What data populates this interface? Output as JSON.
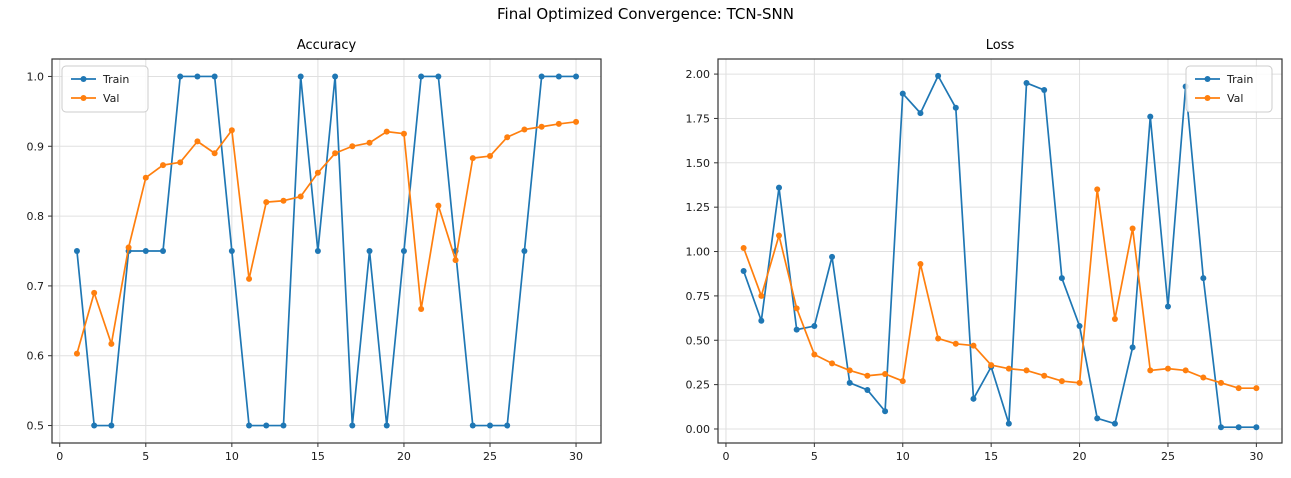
{
  "figure": {
    "suptitle": "Final Optimized Convergence: TCN-SNN"
  },
  "colors": {
    "train": "#1f77b4",
    "val": "#ff7f0e",
    "grid": "#e0e0e0",
    "spine": "#333333",
    "text": "#1a1a1a",
    "legend_border": "#cccccc",
    "legend_bg": "#ffffff"
  },
  "legend": {
    "train_label": "Train",
    "val_label": "Val"
  },
  "chart_data": [
    {
      "type": "line",
      "title": "Accuracy",
      "legend_position": "upper left",
      "grid": true,
      "xlim": [
        -0.45,
        31.45
      ],
      "ylim": [
        0.475,
        1.025
      ],
      "xticks": [
        {
          "v": 0,
          "label": "0"
        },
        {
          "v": 5,
          "label": "5"
        },
        {
          "v": 10,
          "label": "10"
        },
        {
          "v": 15,
          "label": "15"
        },
        {
          "v": 20,
          "label": "20"
        },
        {
          "v": 25,
          "label": "25"
        },
        {
          "v": 30,
          "label": "30"
        }
      ],
      "yticks": [
        {
          "v": 0.5,
          "label": "0.5"
        },
        {
          "v": 0.6,
          "label": "0.6"
        },
        {
          "v": 0.7,
          "label": "0.7"
        },
        {
          "v": 0.8,
          "label": "0.8"
        },
        {
          "v": 0.9,
          "label": "0.9"
        },
        {
          "v": 1.0,
          "label": "1.0"
        }
      ],
      "x": [
        1,
        2,
        3,
        4,
        5,
        6,
        7,
        8,
        9,
        10,
        11,
        12,
        13,
        14,
        15,
        16,
        17,
        18,
        19,
        20,
        21,
        22,
        23,
        24,
        25,
        26,
        27,
        28,
        29,
        30
      ],
      "series": [
        {
          "name": "Train",
          "color_key": "train",
          "values": [
            0.75,
            0.5,
            0.5,
            0.75,
            0.75,
            0.75,
            1.0,
            1.0,
            1.0,
            0.75,
            0.5,
            0.5,
            0.5,
            1.0,
            0.75,
            1.0,
            0.5,
            0.75,
            0.5,
            0.75,
            1.0,
            1.0,
            0.75,
            0.5,
            0.5,
            0.5,
            0.75,
            1.0,
            1.0,
            1.0
          ]
        },
        {
          "name": "Val",
          "color_key": "val",
          "values": [
            0.603,
            0.69,
            0.617,
            0.755,
            0.855,
            0.873,
            0.877,
            0.907,
            0.89,
            0.923,
            0.71,
            0.82,
            0.822,
            0.828,
            0.862,
            0.89,
            0.9,
            0.905,
            0.921,
            0.918,
            0.667,
            0.815,
            0.737,
            0.883,
            0.886,
            0.913,
            0.924,
            0.928,
            0.932,
            0.935
          ]
        }
      ]
    },
    {
      "type": "line",
      "title": "Loss",
      "legend_position": "upper right",
      "grid": true,
      "xlim": [
        -0.45,
        31.45
      ],
      "ylim": [
        -0.079,
        2.085
      ],
      "xticks": [
        {
          "v": 0,
          "label": "0"
        },
        {
          "v": 5,
          "label": "5"
        },
        {
          "v": 10,
          "label": "10"
        },
        {
          "v": 15,
          "label": "15"
        },
        {
          "v": 20,
          "label": "20"
        },
        {
          "v": 25,
          "label": "25"
        },
        {
          "v": 30,
          "label": "30"
        }
      ],
      "yticks": [
        {
          "v": 0.0,
          "label": "0.00"
        },
        {
          "v": 0.25,
          "label": "0.25"
        },
        {
          "v": 0.5,
          "label": "0.50"
        },
        {
          "v": 0.75,
          "label": "0.75"
        },
        {
          "v": 1.0,
          "label": "1.00"
        },
        {
          "v": 1.25,
          "label": "1.25"
        },
        {
          "v": 1.5,
          "label": "1.50"
        },
        {
          "v": 1.75,
          "label": "1.75"
        },
        {
          "v": 2.0,
          "label": "2.00"
        }
      ],
      "x": [
        1,
        2,
        3,
        4,
        5,
        6,
        7,
        8,
        9,
        10,
        11,
        12,
        13,
        14,
        15,
        16,
        17,
        18,
        19,
        20,
        21,
        22,
        23,
        24,
        25,
        26,
        27,
        28,
        29,
        30
      ],
      "series": [
        {
          "name": "Train",
          "color_key": "train",
          "values": [
            0.89,
            0.61,
            1.36,
            0.56,
            0.58,
            0.97,
            0.26,
            0.22,
            0.1,
            1.89,
            1.78,
            1.99,
            1.81,
            0.17,
            0.35,
            0.03,
            1.95,
            1.91,
            0.85,
            0.58,
            0.06,
            0.03,
            0.46,
            1.76,
            0.69,
            1.93,
            0.85,
            0.01,
            0.01,
            0.01
          ]
        },
        {
          "name": "Val",
          "color_key": "val",
          "values": [
            1.02,
            0.75,
            1.09,
            0.68,
            0.42,
            0.37,
            0.33,
            0.3,
            0.31,
            0.27,
            0.93,
            0.51,
            0.48,
            0.47,
            0.36,
            0.34,
            0.33,
            0.3,
            0.27,
            0.26,
            1.35,
            0.62,
            1.13,
            0.33,
            0.34,
            0.33,
            0.29,
            0.26,
            0.23,
            0.23
          ]
        }
      ]
    }
  ]
}
